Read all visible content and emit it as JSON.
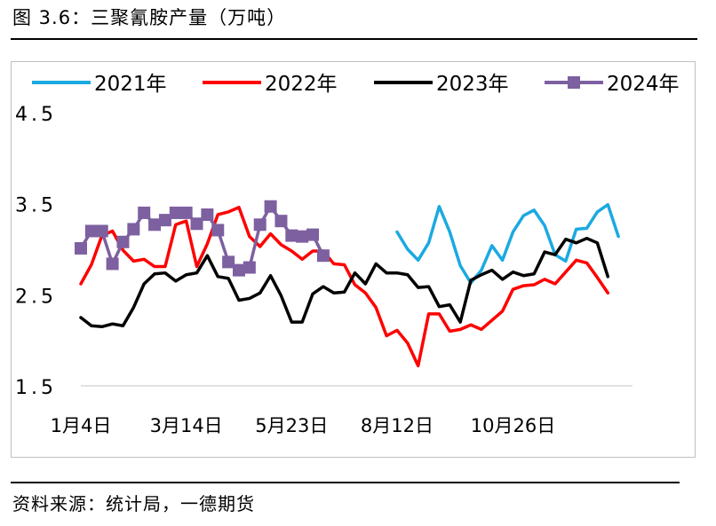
{
  "figure": {
    "title": "图 3.6：三聚氰胺产量（万吨）",
    "source": "资料来源：统计局，一德期货"
  },
  "chart_data": {
    "type": "line",
    "title": "三聚氰胺产量（万吨）",
    "xlabel": "",
    "ylabel": "",
    "ylim": [
      1.5,
      4.5
    ],
    "yticks": [
      "4.5",
      "3.5",
      "2.5",
      "1.5"
    ],
    "ytick_values": [
      4.5,
      3.5,
      2.5,
      1.5
    ],
    "xtick_labels": [
      "1月4日",
      "3月14日",
      "5月23日",
      "8月12日",
      "10月26日"
    ],
    "xtick_index": [
      0,
      10,
      20,
      30,
      41
    ],
    "grid": false,
    "legend_position": "top",
    "num_points": 53,
    "series": [
      {
        "name": "2021年",
        "color": "#1BA9E1",
        "marker": "none",
        "values": [
          null,
          null,
          null,
          null,
          null,
          null,
          null,
          null,
          null,
          null,
          null,
          null,
          null,
          null,
          null,
          null,
          null,
          null,
          null,
          null,
          null,
          null,
          null,
          null,
          null,
          null,
          null,
          null,
          null,
          null,
          3.19,
          3.0,
          2.88,
          3.07,
          3.47,
          3.19,
          2.82,
          2.63,
          2.77,
          3.04,
          2.88,
          3.19,
          3.37,
          3.43,
          3.26,
          2.94,
          2.87,
          3.22,
          3.23,
          3.41,
          3.49,
          3.14,
          null
        ]
      },
      {
        "name": "2022年",
        "color": "#FF0000",
        "marker": "none",
        "values": [
          2.62,
          2.83,
          3.15,
          3.2,
          2.99,
          2.87,
          2.89,
          2.81,
          2.81,
          3.27,
          3.31,
          2.81,
          3.06,
          3.38,
          3.41,
          3.46,
          3.14,
          3.03,
          3.17,
          3.05,
          2.98,
          2.89,
          2.98,
          2.98,
          2.84,
          2.83,
          2.61,
          2.52,
          2.36,
          2.05,
          2.11,
          1.97,
          1.72,
          2.29,
          2.29,
          2.1,
          2.12,
          2.17,
          2.12,
          2.22,
          2.32,
          2.56,
          2.6,
          2.61,
          2.67,
          2.62,
          2.75,
          2.88,
          2.85,
          2.69,
          2.52,
          null,
          null
        ]
      },
      {
        "name": "2023年",
        "color": "#000000",
        "marker": "none",
        "values": [
          2.25,
          2.16,
          2.15,
          2.18,
          2.16,
          2.36,
          2.62,
          2.73,
          2.74,
          2.65,
          2.72,
          2.74,
          2.93,
          2.7,
          2.68,
          2.44,
          2.46,
          2.52,
          2.71,
          2.49,
          2.2,
          2.2,
          2.51,
          2.59,
          2.52,
          2.53,
          2.74,
          2.62,
          2.84,
          2.74,
          2.74,
          2.72,
          2.58,
          2.59,
          2.37,
          2.39,
          2.2,
          2.66,
          2.72,
          2.77,
          2.67,
          2.75,
          2.71,
          2.73,
          2.97,
          2.94,
          3.11,
          3.07,
          3.12,
          3.07,
          2.7,
          null,
          null
        ]
      },
      {
        "name": "2024年",
        "color": "#7D60A0",
        "marker": "square",
        "values": [
          3.01,
          3.2,
          3.2,
          2.84,
          3.08,
          3.22,
          3.4,
          3.27,
          3.32,
          3.4,
          3.4,
          3.28,
          3.38,
          3.21,
          2.86,
          2.77,
          2.8,
          3.27,
          3.47,
          3.31,
          3.15,
          3.14,
          3.16,
          2.93,
          null,
          null,
          null,
          null,
          null,
          null,
          null,
          null,
          null,
          null,
          null,
          null,
          null,
          null,
          null,
          null,
          null,
          null,
          null,
          null,
          null,
          null,
          null,
          null,
          null,
          null,
          null,
          null,
          null
        ]
      }
    ]
  }
}
